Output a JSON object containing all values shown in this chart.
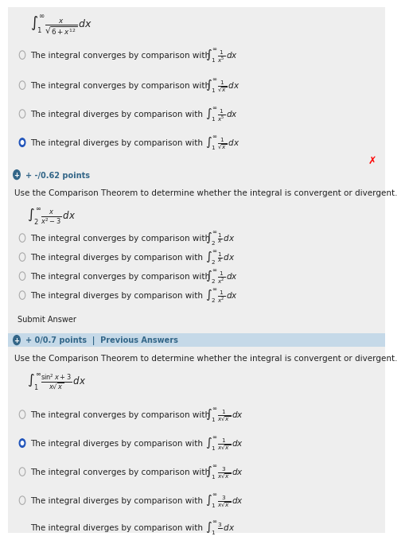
{
  "bg_color": "#ffffff",
  "section1": {
    "integral_main": "$\\int_{1}^{\\infty} \\frac{x}{\\sqrt{6 + x^{12}}} \\, dx$",
    "box_color": "#ffe8e8",
    "box_border": "#dd4444",
    "options": [
      {
        "text": "The integral converges by comparison with",
        "integral": "$\\int_{1}^{\\infty} \\frac{1}{x^5} \\, dx$",
        "selected": false
      },
      {
        "text": "The integral converges by comparison with",
        "integral": "$\\int_{1}^{\\infty} \\frac{1}{\\sqrt{x}} \\, dx$",
        "selected": false
      },
      {
        "text": "The integral diverges by comparison with",
        "integral": "$\\int_{1}^{\\infty} \\frac{1}{x^5} \\, dx$",
        "selected": false
      },
      {
        "text": "The integral diverges by comparison with",
        "integral": "$\\int_{1}^{\\infty} \\frac{1}{\\sqrt{x}} \\, dx$",
        "selected": true
      }
    ],
    "wrong_mark": true
  },
  "section2": {
    "header_text": "+ -/0.62 points",
    "header_bg": "#c5d9e8",
    "header_fg": "#336688",
    "question_text": "Use the Comparison Theorem to determine whether the integral is convergent or divergent.",
    "integral_main": "$\\int_{2}^{\\infty} \\frac{x}{x^2 - 3} \\, dx$",
    "options": [
      {
        "text": "The integral converges by comparison with",
        "integral": "$\\int_{2}^{\\infty} \\frac{1}{x} \\, dx$",
        "selected": false
      },
      {
        "text": "The integral diverges by comparison with",
        "integral": "$\\int_{2}^{\\infty} \\frac{1}{x} \\, dx$",
        "selected": false
      },
      {
        "text": "The integral converges by comparison with",
        "integral": "$\\int_{2}^{\\infty} \\frac{1}{x^2} \\, dx$",
        "selected": false
      },
      {
        "text": "The integral diverges by comparison with",
        "integral": "$\\int_{2}^{\\infty} \\frac{1}{x^2} \\, dx$",
        "selected": false
      }
    ]
  },
  "section3": {
    "header_text": "+ 0/0.7 points  |  Previous Answers",
    "header_bg": "#c5d9e8",
    "header_fg": "#336688",
    "question_text": "Use the Comparison Theorem to determine whether the integral is convergent or divergent.",
    "integral_main": "$\\int_{1}^{\\infty} \\frac{\\sin^2 x + 3}{x\\sqrt{x}} \\, dx$",
    "box_color": "#ffe8e8",
    "box_border": "#dd4444",
    "options": [
      {
        "text": "The integral converges by comparison with",
        "integral": "$\\int_{1}^{\\infty} \\frac{1}{x\\sqrt{x}} \\, dx$",
        "selected": false
      },
      {
        "text": "The integral diverges by comparison with",
        "integral": "$\\int_{1}^{\\infty} \\frac{1}{x\\sqrt{x}} \\, dx$",
        "selected": true
      },
      {
        "text": "The integral converges by comparison with",
        "integral": "$\\int_{1}^{\\infty} \\frac{3}{x\\sqrt{x}} \\, dx$",
        "selected": false
      },
      {
        "text": "The integral diverges by comparison with",
        "integral": "$\\int_{1}^{\\infty} \\frac{3}{x\\sqrt{x}} \\, dx$",
        "selected": false
      }
    ]
  },
  "selected_color": "#2255bb",
  "text_color": "#222222",
  "font_size": 7.5,
  "math_font_size": 8.0
}
